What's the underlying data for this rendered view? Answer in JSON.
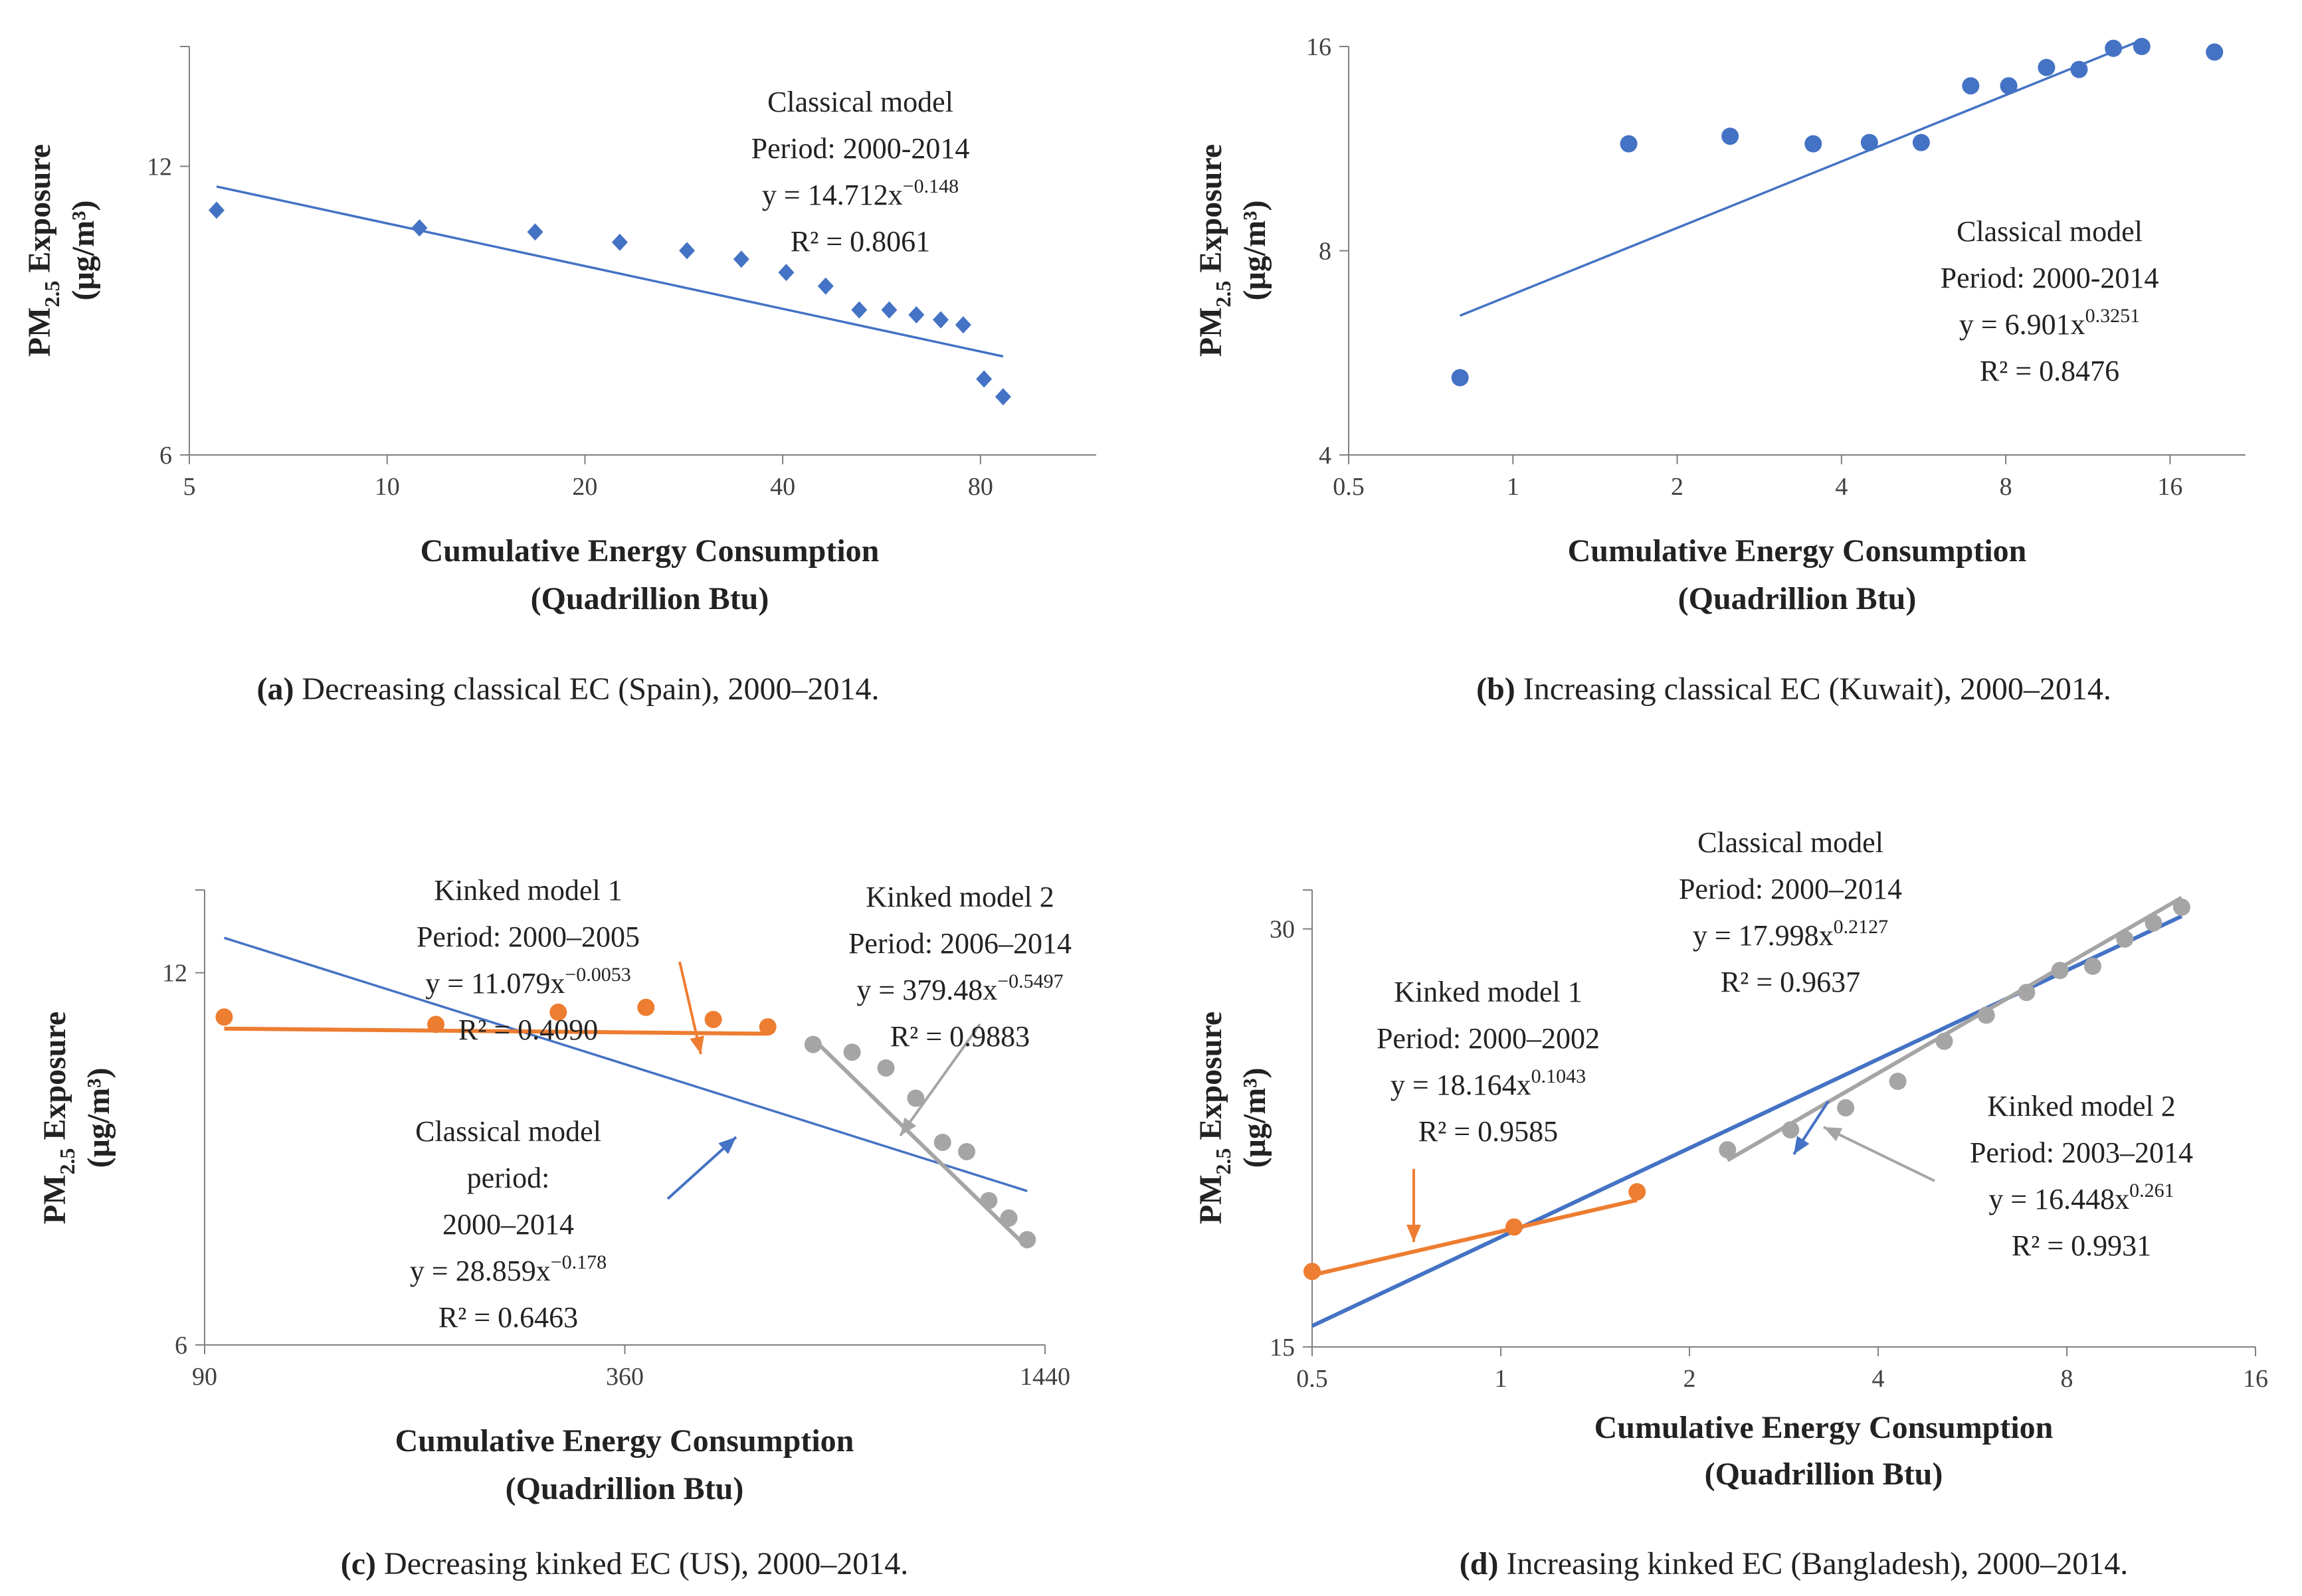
{
  "figure": {
    "background": "#ffffff"
  },
  "colors": {
    "blue": "#4472C4",
    "orange": "#ED7D31",
    "gray": "#A5A5A5",
    "axis": "#808080",
    "text": "#222222"
  },
  "chart_data": [
    {
      "id": "a",
      "type": "scatter",
      "xscale": "log",
      "yscale": "log",
      "xlim": [
        5,
        120
      ],
      "ylim": [
        6,
        16
      ],
      "xticks": [
        "5",
        "10",
        "20",
        "40",
        "80"
      ],
      "xtick_values": [
        5,
        10,
        20,
        40,
        80
      ],
      "yticks": [
        "6",
        "12"
      ],
      "ytick_values": [
        6,
        12
      ],
      "xlabel": "Cumulative Energy Consumption",
      "xlabel2": "(Quadrillion Btu)",
      "ylabel": "PM",
      "ylabel_sub": "2.5",
      "ylabel_rest": " Exposure",
      "ylabel2": "(μg/m³)",
      "marker": "diamond",
      "series": [
        {
          "name": "Spain",
          "color": "#4472C4",
          "x": [
            5.5,
            11.2,
            16.8,
            22.6,
            28.6,
            34.6,
            40.5,
            46.5,
            52.3,
            58.1,
            63.9,
            69.6,
            75.3,
            81.0,
            86.6
          ],
          "y": [
            10.8,
            10.35,
            10.25,
            10.0,
            9.8,
            9.6,
            9.3,
            9.0,
            8.5,
            8.5,
            8.4,
            8.3,
            8.2,
            7.2,
            6.9
          ]
        }
      ],
      "fits": [
        {
          "name": "Classical model",
          "color": "#4472C4",
          "a": 14.712,
          "b": -0.148,
          "xrange": [
            5.5,
            86.6
          ]
        }
      ],
      "annotations": [
        {
          "lines": [
            "Classical model",
            "Period: 2000-2014",
            "y = 14.712x",
            "R² = 0.8061"
          ],
          "exp": "−0.148"
        }
      ],
      "caption_label": "(a)",
      "caption": " Decreasing classical EC (Spain), 2000–2014."
    },
    {
      "id": "b",
      "type": "scatter",
      "xscale": "log",
      "yscale": "log",
      "xlim": [
        0.5,
        22
      ],
      "ylim": [
        4,
        16
      ],
      "xticks": [
        "0.5",
        "1",
        "2",
        "4",
        "8",
        "16"
      ],
      "xtick_values": [
        0.5,
        1,
        2,
        4,
        8,
        16
      ],
      "yticks": [
        "4",
        "8",
        "16"
      ],
      "ytick_values": [
        4,
        8,
        16
      ],
      "xlabel": "Cumulative Energy Consumption",
      "xlabel2": "(Quadrillion Btu)",
      "ylabel": "PM",
      "ylabel_sub": "2.5",
      "ylabel_rest": " Exposure",
      "ylabel2": "(μg/m³)",
      "marker": "circle",
      "series": [
        {
          "name": "Kuwait",
          "color": "#4472C4",
          "x": [
            0.8,
            1.63,
            2.5,
            3.55,
            4.5,
            5.6,
            6.9,
            8.1,
            9.5,
            10.9,
            12.6,
            14.2,
            19.3
          ],
          "y": [
            5.2,
            11.5,
            11.8,
            11.5,
            11.55,
            11.55,
            14.0,
            14.0,
            14.9,
            14.8,
            15.9,
            16.0,
            15.7
          ]
        }
      ],
      "fits": [
        {
          "name": "Classical model",
          "color": "#4472C4",
          "a": 6.901,
          "b": 0.3251,
          "xrange": [
            0.8,
            14.2
          ]
        }
      ],
      "annotations": [
        {
          "lines": [
            "Classical model",
            "Period: 2000-2014",
            "y = 6.901x",
            "R² = 0.8476"
          ],
          "exp": "0.3251"
        }
      ],
      "caption_label": "(b)",
      "caption": " Increasing classical EC (Kuwait), 2000–2014."
    },
    {
      "id": "c",
      "type": "scatter",
      "xscale": "log",
      "yscale": "log",
      "xlim": [
        90,
        1440
      ],
      "ylim": [
        6,
        14
      ],
      "xticks": [
        "90",
        "360",
        "1440"
      ],
      "xtick_values": [
        90,
        360,
        1440
      ],
      "yticks": [
        "6",
        "12"
      ],
      "ytick_values": [
        6,
        12
      ],
      "xlabel": "Cumulative Energy Consumption",
      "xlabel2": "(Quadrillion Btu)",
      "ylabel": "PM",
      "ylabel_sub": "2.5",
      "ylabel_rest": " Exposure",
      "ylabel2": "(μg/m³)",
      "marker": "circle",
      "series": [
        {
          "name": "2000–2005",
          "color": "#ED7D31",
          "x": [
            96,
            193,
            289,
            386,
            482,
            577
          ],
          "y": [
            11.05,
            10.9,
            11.15,
            11.25,
            11.0,
            10.85
          ]
        },
        {
          "name": "2006–2014",
          "color": "#A5A5A5",
          "x": [
            670,
            762,
            852,
            940,
            1027,
            1112,
            1196,
            1278,
            1358
          ],
          "y": [
            10.5,
            10.35,
            10.05,
            9.5,
            8.75,
            8.6,
            7.85,
            7.6,
            7.3
          ]
        }
      ],
      "fits": [
        {
          "name": "Classical model",
          "color": "#4472C4",
          "a": 28.859,
          "b": -0.178,
          "xrange": [
            96,
            1358
          ]
        },
        {
          "name": "Kinked model 1",
          "color": "#ED7D31",
          "a": 11.079,
          "b": -0.0053,
          "xrange": [
            96,
            577
          ]
        },
        {
          "name": "Kinked model 2",
          "color": "#A5A5A5",
          "a": 379.48,
          "b": -0.5497,
          "xrange": [
            670,
            1358
          ]
        }
      ],
      "annotations": [
        {
          "lines": [
            "Kinked model 1",
            "Period: 2000–2005",
            "y = 11.079x",
            "R² = 0.4090"
          ],
          "exp": "−0.0053"
        },
        {
          "lines": [
            "Kinked model 2",
            "Period: 2006–2014",
            "y = 379.48x",
            "R² = 0.9883"
          ],
          "exp": "−0.5497"
        },
        {
          "lines": [
            "Classical model",
            "period:",
            "2000–2014",
            "y = 28.859x",
            "R² = 0.6463"
          ],
          "exp": "−0.178"
        }
      ],
      "caption_label": "(c)",
      "caption": " Decreasing kinked EC (US), 2000–2014."
    },
    {
      "id": "d",
      "type": "scatter",
      "xscale": "log",
      "yscale": "log",
      "xlim": [
        0.5,
        16
      ],
      "ylim": [
        15,
        32
      ],
      "xticks": [
        "0.5",
        "1",
        "2",
        "4",
        "8",
        "16"
      ],
      "xtick_values": [
        0.5,
        1,
        2,
        4,
        8,
        16
      ],
      "yticks": [
        "15",
        "30"
      ],
      "ytick_values": [
        15,
        30
      ],
      "xlabel": "Cumulative Energy Consumption",
      "xlabel2": "(Quadrillion Btu)",
      "ylabel": "PM",
      "ylabel_sub": "2.5",
      "ylabel_rest": " Exposure",
      "ylabel2": "(μg/m³)",
      "marker": "circle",
      "series": [
        {
          "name": "2000–2002",
          "color": "#ED7D31",
          "x": [
            0.5,
            1.05,
            1.65
          ],
          "y": [
            17.0,
            18.3,
            19.4
          ]
        },
        {
          "name": "2003–2014",
          "color": "#A5A5A5",
          "x": [
            2.3,
            2.9,
            3.55,
            4.3,
            5.1,
            5.95,
            6.9,
            7.8,
            8.8,
            9.9,
            11.0,
            12.2
          ],
          "y": [
            20.8,
            21.5,
            22.3,
            23.3,
            24.9,
            26.0,
            27.0,
            28.0,
            28.2,
            29.5,
            30.3,
            31.1
          ]
        }
      ],
      "fits": [
        {
          "name": "Classical model",
          "color": "#4472C4",
          "a": 17.998,
          "b": 0.2127,
          "xrange": [
            0.5,
            12.2
          ]
        },
        {
          "name": "Kinked model 1",
          "color": "#ED7D31",
          "a": 18.164,
          "b": 0.1043,
          "xrange": [
            0.5,
            1.65
          ]
        },
        {
          "name": "Kinked model 2",
          "color": "#A5A5A5",
          "a": 16.448,
          "b": 0.261,
          "xrange": [
            2.3,
            12.2
          ]
        }
      ],
      "annotations": [
        {
          "lines": [
            "Classical model",
            "Period: 2000–2014",
            "y = 17.998x",
            "R² = 0.9637"
          ],
          "exp": "0.2127"
        },
        {
          "lines": [
            "Kinked model 1",
            "Period: 2000–2002",
            "y = 18.164x",
            "R² = 0.9585"
          ],
          "exp": "0.1043"
        },
        {
          "lines": [
            "Kinked model 2",
            "Period: 2003–2014",
            "y = 16.448x",
            "R² = 0.9931"
          ],
          "exp": "0.261"
        }
      ],
      "caption_label": "(d)",
      "caption": " Increasing kinked EC (Bangladesh), 2000–2014."
    }
  ]
}
